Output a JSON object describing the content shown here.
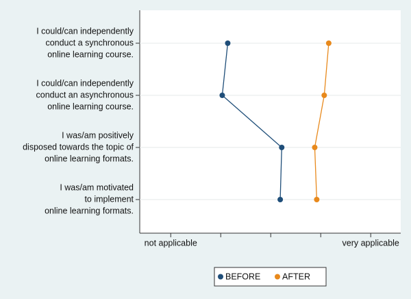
{
  "chart_data": {
    "type": "dot-line",
    "categories": [
      [
        "I could/can independently",
        "conduct a synchronous",
        "online learning course."
      ],
      [
        "I could/can independently",
        "conduct an asynchronous",
        "online learning course."
      ],
      [
        "I was/am positively",
        "disposed towards the topic of",
        "online learning formats."
      ],
      [
        "I was/am motivated",
        "to implement",
        "online learning formats."
      ]
    ],
    "series": [
      {
        "name": "BEFORE",
        "color": "#1f4e79",
        "values": [
          2.14,
          2.03,
          3.22,
          3.19
        ]
      },
      {
        "name": "AFTER",
        "color": "#e8891c",
        "values": [
          4.16,
          4.07,
          3.88,
          3.92
        ]
      }
    ],
    "xlim": [
      0.38,
      5.6
    ],
    "xticks": [
      {
        "value": 1,
        "label": "not applicable"
      },
      {
        "value": 2,
        "label": null
      },
      {
        "value": 3,
        "label": null
      },
      {
        "value": 4,
        "label": null
      },
      {
        "value": 5,
        "label": "very applicable"
      }
    ],
    "grid": true
  }
}
